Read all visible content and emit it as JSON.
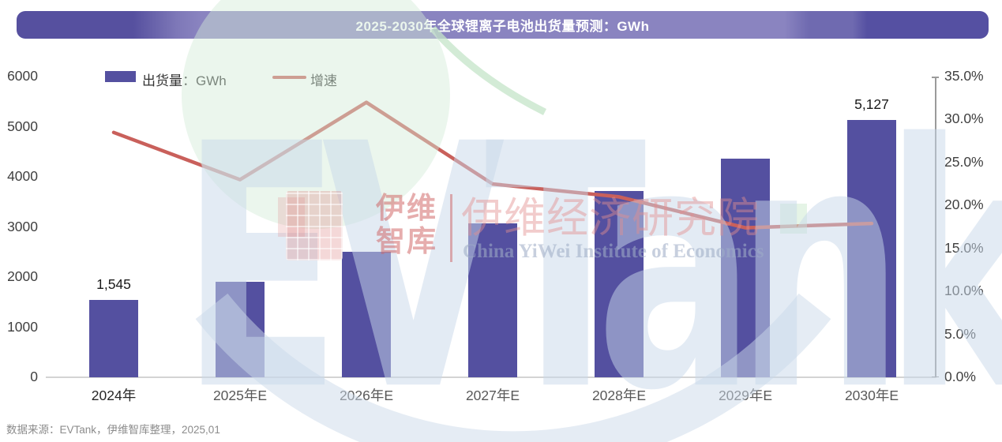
{
  "title": {
    "text": "2025-2030年全球锂离子电池出货量预测：GWh"
  },
  "legend": {
    "bar_label": "出货量：GWh",
    "line_label": "增速"
  },
  "chart_data": {
    "type": "combo-bar-line",
    "title": "2025-2030年全球锂离子电池出货量预测：GWh",
    "categories": [
      "2024年",
      "2025年E",
      "2026年E",
      "2027年E",
      "2028年E",
      "2029年E",
      "2030年E"
    ],
    "series": [
      {
        "name": "出货量：GWh",
        "type": "bar",
        "axis": "left",
        "values": [
          1545,
          1900,
          2505,
          3070,
          3715,
          4360,
          5127
        ]
      },
      {
        "name": "增速",
        "type": "line",
        "axis": "right",
        "values_pct": [
          28.5,
          23.0,
          32.0,
          22.5,
          21.0,
          17.4,
          17.9
        ]
      }
    ],
    "bar_value_labels": [
      "1,545",
      "",
      "",
      "",
      "",
      "",
      "5,127"
    ],
    "left_axis": {
      "min": 0,
      "max": 6000,
      "step": 1000,
      "ticks": [
        "0",
        "1000",
        "2000",
        "3000",
        "4000",
        "5000",
        "6000"
      ]
    },
    "right_axis": {
      "min": 0,
      "max": 35,
      "step": 5,
      "ticks": [
        "0.0%",
        "5.0%",
        "10.0%",
        "15.0%",
        "20.0%",
        "25.0%",
        "30.0%",
        "35.0%"
      ]
    },
    "grid": false,
    "legend_position": "top-left"
  },
  "footer": {
    "source": "数据来源：EVTank，伊维智库整理，2025,01"
  },
  "watermark": {
    "brand": "EVTank",
    "logo_cn_line1": "伊维",
    "logo_cn_line2": "智库",
    "institute_cn": "伊维经济研究院",
    "institute_en": "China YiWei Institute of Economics"
  },
  "colors": {
    "bar": "#5450a0",
    "line": "#c9605b",
    "title_bar_dark": "#56509f",
    "title_bar_light": "#8a84c0",
    "title_text": "#ffffff",
    "legend_text": "#333333",
    "axis_text": "#404040",
    "x_label": "#595959",
    "x_label_actual": "#262626",
    "value_label": "#1a1a1a",
    "baseline": "#d4d4d4",
    "right_axis_line": "#9b9b9b",
    "footer_text": "#8c8c8c"
  }
}
